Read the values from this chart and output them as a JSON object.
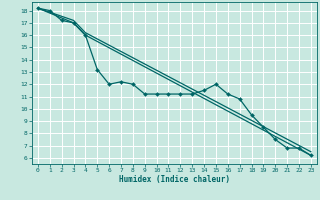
{
  "title": "",
  "xlabel": "Humidex (Indice chaleur)",
  "ylabel": "",
  "xlim": [
    -0.5,
    23.5
  ],
  "ylim": [
    5.5,
    18.7
  ],
  "xticks": [
    0,
    1,
    2,
    3,
    4,
    5,
    6,
    7,
    8,
    9,
    10,
    11,
    12,
    13,
    14,
    15,
    16,
    17,
    18,
    19,
    20,
    21,
    22,
    23
  ],
  "yticks": [
    6,
    7,
    8,
    9,
    10,
    11,
    12,
    13,
    14,
    15,
    16,
    17,
    18
  ],
  "bg_color": "#c8e8e0",
  "grid_color": "#ffffff",
  "line_color": "#006666",
  "line1_x": [
    0,
    1,
    2,
    3,
    4,
    5,
    6,
    7,
    8,
    9,
    10,
    11,
    12,
    13,
    14,
    15,
    16,
    17,
    18,
    19,
    20,
    21,
    22,
    23
  ],
  "line1_y": [
    18.2,
    18.0,
    17.2,
    17.0,
    16.0,
    13.2,
    12.0,
    12.2,
    12.0,
    11.2,
    11.2,
    11.2,
    11.2,
    11.2,
    11.5,
    12.0,
    11.2,
    10.8,
    9.5,
    8.5,
    7.5,
    6.8,
    6.8,
    6.2
  ],
  "line2_x": [
    0,
    3,
    4,
    23
  ],
  "line2_y": [
    18.2,
    17.2,
    16.2,
    6.5
  ],
  "line3_x": [
    0,
    3,
    4,
    23
  ],
  "line3_y": [
    18.2,
    17.0,
    16.0,
    6.2
  ],
  "marker": "D",
  "markersize": 2.0,
  "linewidth": 0.9,
  "xlabel_fontsize": 5.5,
  "tick_fontsize": 4.5
}
